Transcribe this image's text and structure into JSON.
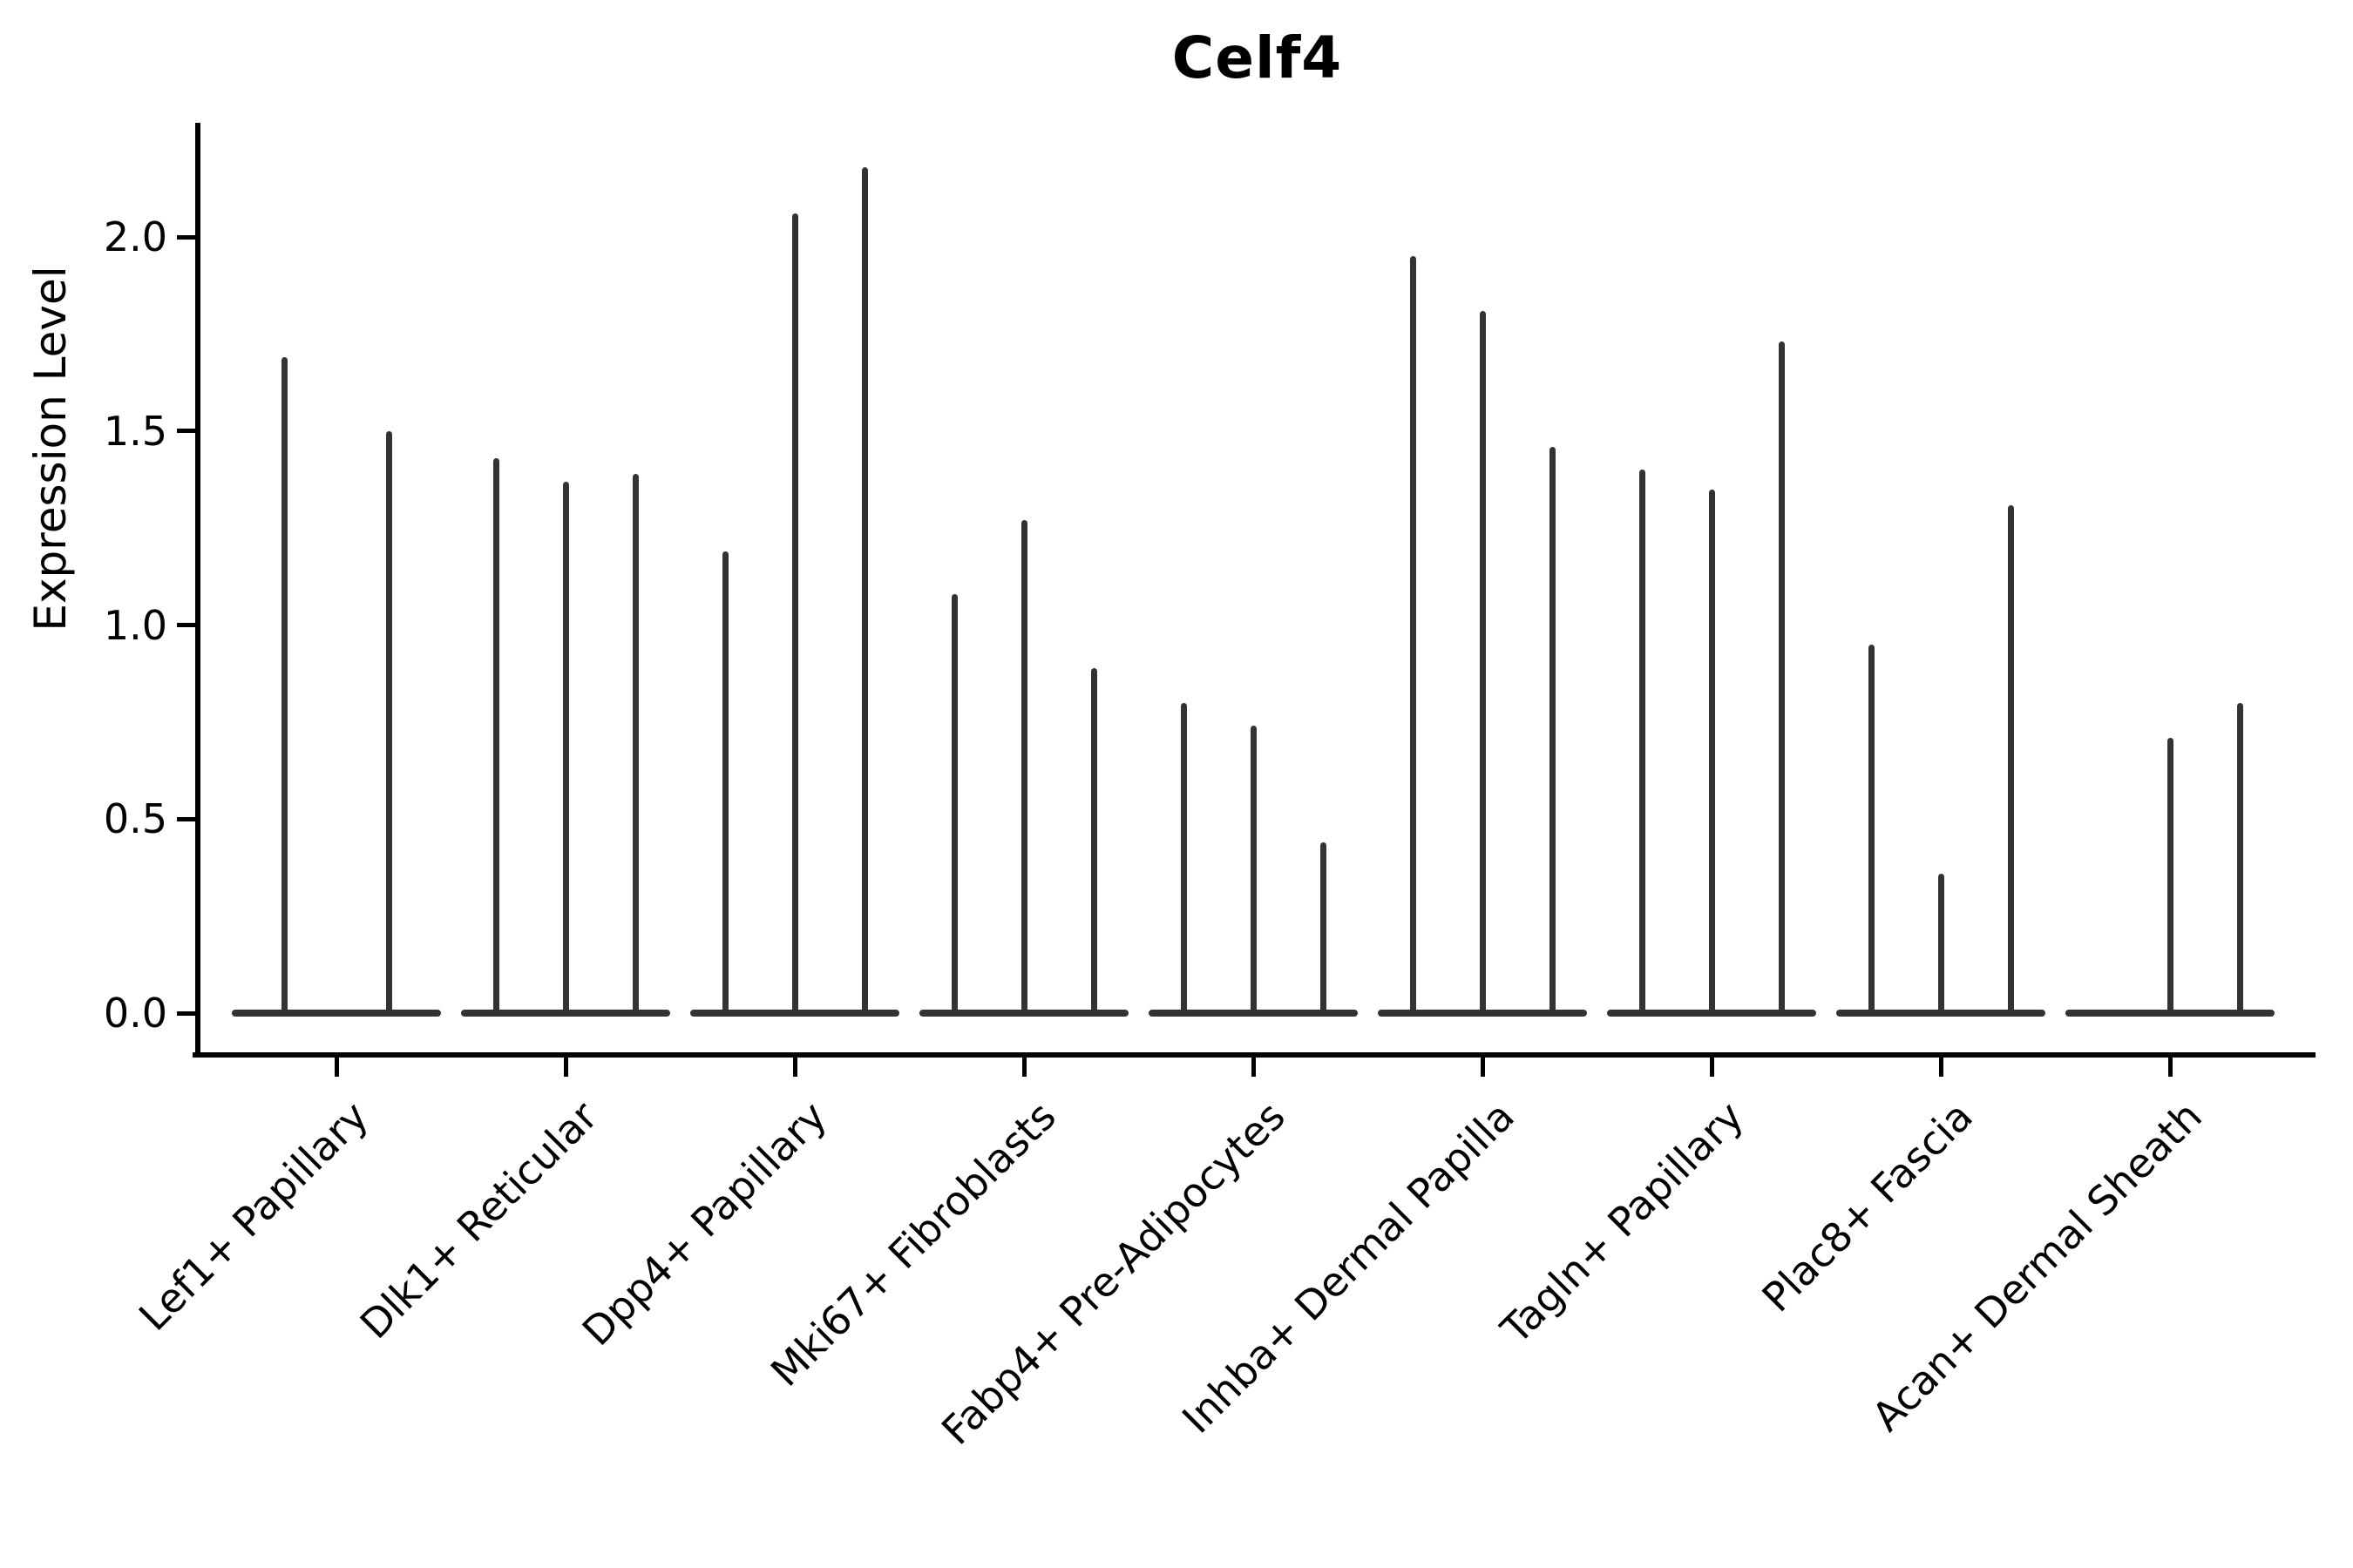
{
  "figure": {
    "title": "Celf4",
    "ylabel": "Expression Level"
  },
  "chart_data": {
    "type": "violin",
    "title": "Celf4",
    "xlabel": "",
    "ylabel": "Expression Level",
    "ylim": [
      -0.11,
      2.3
    ],
    "grid": false,
    "legend_position": "none",
    "ytick_labels": [
      "0.0",
      "0.5",
      "1.0",
      "1.5",
      "2.0"
    ],
    "categories": [
      "Lef1+ Papillary",
      "Dlk1+ Reticular",
      "Dpp4+ Papillary",
      "Mki67+ Fibroblasts",
      "Fabp4+ Pre-Adipocytes",
      "Inhba+ Dermal Papilla",
      "Tagln+ Papillary",
      "Plac8+ Fascia",
      "Acan+ Dermal Sheath"
    ],
    "groups": [
      {
        "category": "Lef1+ Papillary",
        "violin_max_expression": [
          1.69,
          1.5
        ]
      },
      {
        "category": "Dlk1+ Reticular",
        "violin_max_expression": [
          1.43,
          1.37,
          1.39
        ]
      },
      {
        "category": "Dpp4+ Papillary",
        "violin_max_expression": [
          1.19,
          2.06,
          2.18
        ]
      },
      {
        "category": "Mki67+ Fibroblasts",
        "violin_max_expression": [
          1.08,
          1.27,
          0.89
        ]
      },
      {
        "category": "Fabp4+ Pre-Adipocytes",
        "violin_max_expression": [
          0.8,
          0.74,
          0.44
        ]
      },
      {
        "category": "Inhba+ Dermal Papilla",
        "violin_max_expression": [
          1.95,
          1.81,
          1.46
        ]
      },
      {
        "category": "Tagln+ Papillary",
        "violin_max_expression": [
          1.4,
          1.35,
          1.73
        ]
      },
      {
        "category": "Plac8+ Fascia",
        "violin_max_expression": [
          0.95,
          0.36,
          1.31
        ]
      },
      {
        "category": "Acan+ Dermal Sheath",
        "violin_max_expression": [
          0.0,
          0.71,
          0.8
        ]
      }
    ],
    "colors": {
      "violin": "#333333",
      "axis": "#000000",
      "text": "#000000",
      "background": "#ffffff"
    }
  }
}
